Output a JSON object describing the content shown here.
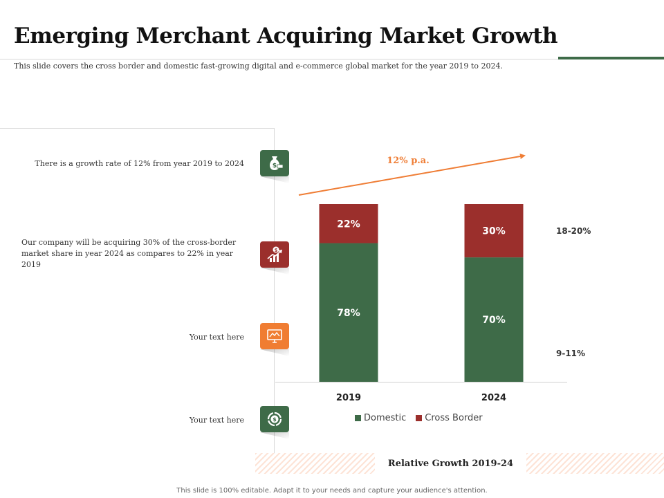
{
  "title": "Emerging Merchant Acquiring Market Growth",
  "subtitle": "This slide covers the cross border and domestic fast-growing digital and e-commerce global market for the year 2019 to 2024.",
  "points": [
    {
      "text": "There is a growth rate of 12% from year 2019 to 2024",
      "icon": "money-bag-icon",
      "color": "#3e6b48"
    },
    {
      "text": "Our company will be acquiring 30% of the cross-border market share in year 2024 as compares to 22% in year 2019",
      "icon": "growth-chart-icon",
      "color": "#9b2f2c"
    },
    {
      "text": "Your text here",
      "icon": "monitor-chart-icon",
      "color": "#f07d32"
    },
    {
      "text": "Your text here",
      "icon": "dollar-cycle-icon",
      "color": "#3e6b48"
    }
  ],
  "chart_data": {
    "type": "bar",
    "stacked": true,
    "categories": [
      "2019",
      "2024"
    ],
    "series": [
      {
        "name": "Domestic",
        "values": [
          78,
          70
        ],
        "labels": [
          "78%",
          "70%"
        ],
        "color": "#3e6b48"
      },
      {
        "name": "Cross Border",
        "values": [
          22,
          30
        ],
        "labels": [
          "22%",
          "30%"
        ],
        "color": "#9b2f2c"
      }
    ],
    "ylim": [
      0,
      100
    ],
    "annotation": "12% p.a.",
    "annotation_color": "#ef7d35",
    "range_labels": {
      "cross_border": "18-20%",
      "domestic": "9-11%"
    },
    "footer": "Relative Growth 2019-24"
  },
  "footnote": "This slide is 100% editable. Adapt it to your needs and capture your audience's attention."
}
